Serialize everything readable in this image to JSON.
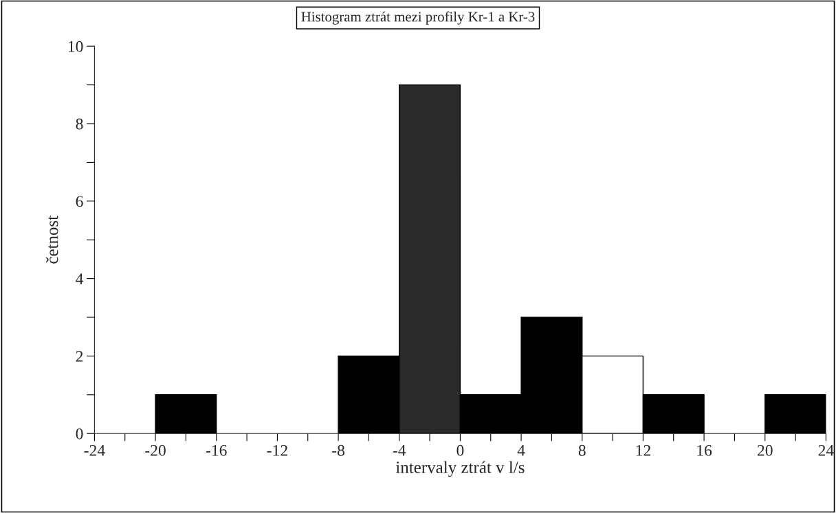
{
  "chart_data": {
    "type": "histogram",
    "title": "Histogram ztrát mezi profily Kr-1 a Kr-3",
    "xlabel": "intervaly ztrát v l/s",
    "ylabel": "četnost",
    "bins": [
      -24,
      -20,
      -16,
      -12,
      -8,
      -4,
      0,
      4,
      8,
      12,
      16,
      20,
      24
    ],
    "values": [
      0,
      1,
      0,
      0,
      2,
      9,
      1,
      3,
      2,
      1,
      0,
      1
    ],
    "colors": [
      "#000000",
      "#000000",
      "#000000",
      "#000000",
      "#000000",
      "#2a2a2a",
      "#000000",
      "#000000",
      "#ffffff",
      "#000000",
      "#000000",
      "#000000"
    ],
    "xlim": [
      -24,
      24
    ],
    "ylim": [
      0,
      10
    ],
    "xticks": [
      -24,
      {
        "value": -22,
        "label": null
      },
      -20,
      {
        "value": -18,
        "label": null
      },
      -16,
      {
        "value": -14,
        "label": null
      },
      -12,
      {
        "value": -10,
        "label": null
      },
      -8,
      {
        "value": -6,
        "label": null
      },
      -4,
      {
        "value": -2,
        "label": null
      },
      0,
      {
        "value": 2,
        "label": null
      },
      4,
      {
        "value": 6,
        "label": null
      },
      8,
      {
        "value": 10,
        "label": null
      },
      12,
      {
        "value": 14,
        "label": null
      },
      16,
      {
        "value": 18,
        "label": null
      },
      20,
      {
        "value": 22,
        "label": null
      },
      24
    ],
    "yticks": [
      0,
      {
        "value": 1,
        "label": null
      },
      2,
      {
        "value": 3,
        "label": null
      },
      4,
      {
        "value": 5,
        "label": null
      },
      6,
      {
        "value": 7,
        "label": null
      },
      8,
      {
        "value": 9,
        "label": null
      },
      10
    ]
  }
}
